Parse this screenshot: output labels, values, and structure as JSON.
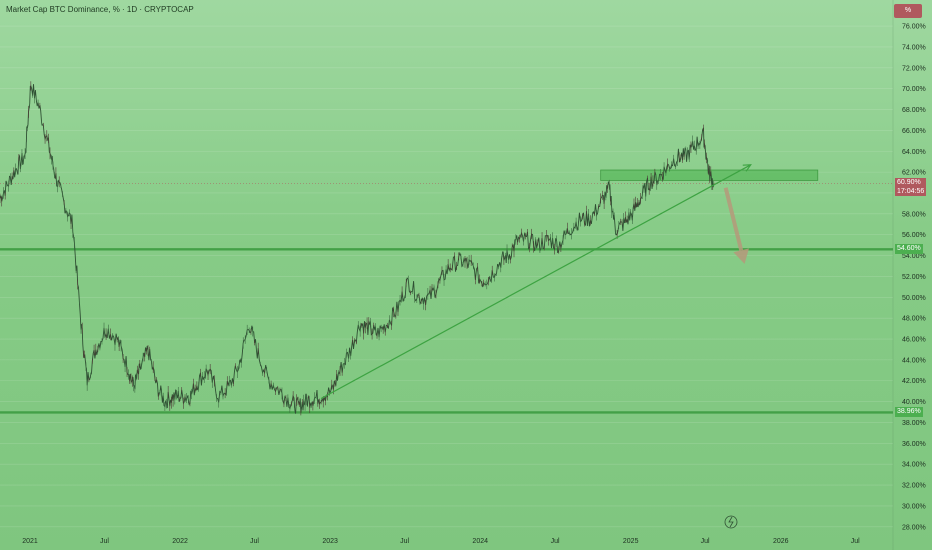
{
  "chart_title": "Market Cap BTC Dominance, % · 1D · CRYPTOCAP",
  "unit_badge": "%",
  "price_tags": {
    "current": {
      "value": "60.90%",
      "countdown": "17:04:56",
      "color": "#b0595e"
    },
    "support_high": {
      "value": "54.60%",
      "color": "#4caf50"
    },
    "support_low": {
      "value": "38.96%",
      "color": "#4caf50"
    }
  },
  "colors": {
    "accent": "#43a047",
    "down": "#b0595e",
    "arrow": "#b5997a"
  },
  "icons": [
    "replay-icon"
  ],
  "chart_data": {
    "type": "line",
    "title": "Market Cap BTC Dominance, % · 1D · CRYPTOCAP",
    "ylim": [
      27.5,
      78.5
    ],
    "y_ticks": [
      "28.00%",
      "30.00%",
      "32.00%",
      "34.00%",
      "36.00%",
      "38.00%",
      "40.00%",
      "42.00%",
      "44.00%",
      "46.00%",
      "48.00%",
      "50.00%",
      "52.00%",
      "54.00%",
      "56.00%",
      "58.00%",
      "60.00%",
      "62.00%",
      "64.00%",
      "66.00%",
      "68.00%",
      "70.00%",
      "72.00%",
      "74.00%",
      "76.00%"
    ],
    "y_tick_values": [
      28,
      30,
      32,
      34,
      36,
      38,
      40,
      42,
      44,
      46,
      48,
      50,
      52,
      54,
      56,
      58,
      60,
      62,
      64,
      66,
      68,
      70,
      72,
      74,
      76
    ],
    "x_ticks": [
      "2021",
      "Jul",
      "2022",
      "Jul",
      "2023",
      "Jul",
      "2024",
      "Jul",
      "2025",
      "Jul",
      "2026",
      "Jul"
    ],
    "x_tick_dates": [
      "2021-01-01",
      "2021-07-01",
      "2022-01-01",
      "2022-07-01",
      "2023-01-01",
      "2023-07-01",
      "2024-01-01",
      "2024-07-01",
      "2025-01-01",
      "2025-07-01",
      "2026-01-01",
      "2026-07-01"
    ],
    "xlim": [
      "2020-10-20",
      "2026-10-01"
    ],
    "series": [
      {
        "x": [
          "2020-10-20",
          "2020-11-10",
          "2020-12-01",
          "2020-12-20",
          "2021-01-03",
          "2021-01-25",
          "2021-02-15",
          "2021-03-05",
          "2021-03-25",
          "2021-04-15",
          "2021-05-05",
          "2021-05-20",
          "2021-06-10",
          "2021-07-05",
          "2021-08-01",
          "2021-08-25",
          "2021-09-10",
          "2021-09-25",
          "2021-10-15",
          "2021-11-05",
          "2021-11-25",
          "2021-12-15",
          "2022-01-05",
          "2022-01-25",
          "2022-02-15",
          "2022-03-10",
          "2022-04-05",
          "2022-05-01",
          "2022-05-25",
          "2022-06-18",
          "2022-07-10",
          "2022-08-05",
          "2022-09-01",
          "2022-09-25",
          "2022-10-15",
          "2022-11-01",
          "2022-11-20",
          "2022-12-10",
          "2023-01-05",
          "2023-01-25",
          "2023-02-20",
          "2023-03-15",
          "2023-04-05",
          "2023-04-25",
          "2023-05-20",
          "2023-06-15",
          "2023-07-10",
          "2023-08-05",
          "2023-09-01",
          "2023-09-25",
          "2023-10-20",
          "2023-11-15",
          "2023-12-10",
          "2024-01-05",
          "2024-01-25",
          "2024-02-20",
          "2024-03-10",
          "2024-04-01",
          "2024-04-25",
          "2024-05-20",
          "2024-06-15",
          "2024-07-10",
          "2024-08-05",
          "2024-09-01",
          "2024-09-25",
          "2024-10-20",
          "2024-11-10",
          "2024-11-25",
          "2024-12-15",
          "2025-01-05",
          "2025-01-25",
          "2025-02-15",
          "2025-03-10",
          "2025-04-01",
          "2025-04-25",
          "2025-05-15",
          "2025-06-05",
          "2025-06-27",
          "2025-07-10",
          "2025-07-22"
        ],
        "values": [
          59.5,
          61.0,
          62.5,
          63.5,
          70.5,
          68.0,
          64.5,
          61.5,
          59.0,
          57.0,
          47.5,
          42.0,
          45.0,
          47.0,
          46.0,
          43.5,
          41.5,
          43.0,
          45.0,
          41.5,
          40.0,
          40.5,
          40.5,
          40.5,
          42.0,
          43.0,
          40.5,
          41.5,
          43.5,
          47.5,
          44.5,
          42.0,
          41.0,
          40.0,
          39.5,
          40.0,
          40.3,
          40.5,
          41.0,
          43.0,
          45.0,
          47.5,
          47.0,
          46.5,
          47.5,
          49.0,
          51.5,
          50.0,
          50.0,
          51.5,
          53.0,
          53.5,
          53.0,
          51.5,
          52.0,
          53.5,
          54.0,
          55.5,
          55.5,
          55.0,
          55.5,
          55.0,
          56.5,
          57.5,
          57.5,
          59.0,
          60.5,
          56.5,
          57.0,
          58.0,
          59.5,
          61.0,
          61.5,
          62.5,
          63.5,
          63.5,
          64.5,
          65.5,
          62.0,
          60.9
        ]
      }
    ],
    "annotations": {
      "resistance_zone": {
        "x": [
          "2024-10-20",
          "2026-04-01"
        ],
        "y": [
          61.2,
          62.2
        ]
      },
      "rising_trendline": {
        "x": [
          "2022-12-10",
          "2025-10-20"
        ],
        "y": [
          40.3,
          62.7
        ]
      },
      "horizontal_levels": [
        54.6,
        38.96
      ],
      "projected_drop_arrow": {
        "x": [
          "2025-08-20",
          "2025-10-05"
        ],
        "y": [
          60.5,
          53.2
        ]
      }
    }
  }
}
